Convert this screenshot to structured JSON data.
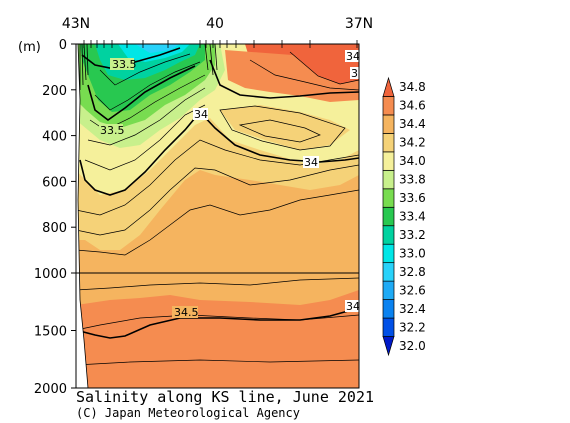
{
  "chart_data": {
    "type": "heatmap",
    "title": "Salinity along KS line, June 2021",
    "credit": "(C) Japan Meteorological Agency",
    "x_top_ticks": [
      "43N",
      "40",
      "37N"
    ],
    "y_unit": "(m)",
    "y_ticks_upper": [
      0,
      200,
      400,
      600,
      800,
      1000
    ],
    "y_ticks_lower": [
      1500,
      2000
    ],
    "y_break": 1000,
    "colorbar": {
      "levels": [
        32.0,
        32.2,
        32.4,
        32.6,
        32.8,
        33.0,
        33.2,
        33.4,
        33.6,
        33.8,
        34.0,
        34.2,
        34.4,
        34.6,
        34.8
      ],
      "labels": [
        "32.0",
        "32.2",
        "32.4",
        "32.6",
        "32.8",
        "33.0",
        "33.2",
        "33.4",
        "33.6",
        "33.8",
        "34.0",
        "34.2",
        "34.4",
        "34.6",
        "34.8"
      ],
      "colors": [
        "#0019c8",
        "#0050e6",
        "#0a82f0",
        "#1eaaf5",
        "#28d2fa",
        "#00e6e6",
        "#00d2a0",
        "#28c850",
        "#78dc50",
        "#c8f08c",
        "#f5f09b",
        "#f5d278",
        "#f5b45f",
        "#f58c50",
        "#f0643c"
      ]
    },
    "contour_labels": [
      {
        "text": "33.5"
      },
      {
        "text": "33.5"
      },
      {
        "text": "34"
      },
      {
        "text": "34"
      },
      {
        "text": "34"
      },
      {
        "text": "3"
      },
      {
        "text": "34.5"
      },
      {
        "text": "34"
      }
    ]
  }
}
